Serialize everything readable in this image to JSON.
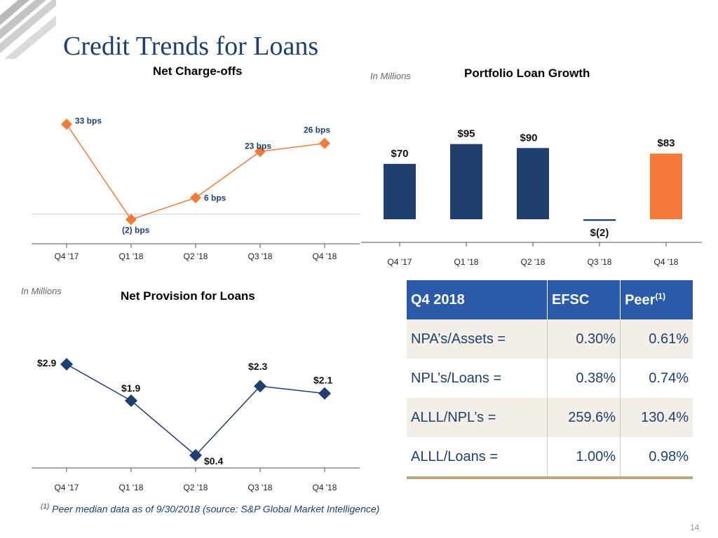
{
  "page": {
    "title": "Credit Trends for Loans",
    "page_number": "14",
    "footnote": {
      "marker": "(1)",
      "text": "Peer median data as of 9/30/2018 (source: S&P Global Market Intelligence)"
    }
  },
  "colors": {
    "navy": "#1f3f6f",
    "orange": "#f47a3a",
    "table_header": "#2b5aa8",
    "table_stripe": "#f3efe6",
    "table_rule": "#b9a67a"
  },
  "chart_data": [
    {
      "id": "net-charge-offs",
      "type": "line",
      "title": "Net Charge-offs",
      "units_label": "",
      "categories": [
        "Q4 '17",
        "Q1 '18",
        "Q2 '18",
        "Q3 '18",
        "Q4 '18"
      ],
      "values": [
        33,
        -2,
        6,
        23,
        26
      ],
      "labels": [
        "33 bps",
        "(2) bps",
        "6 bps",
        "23 bps",
        "26 bps"
      ],
      "ylim": [
        -5,
        38
      ],
      "color": "#f47a3a",
      "marker": "diamond"
    },
    {
      "id": "portfolio-loan-growth",
      "type": "bar",
      "title": "Portfolio Loan Growth",
      "units_label": "In Millions",
      "categories": [
        "Q4 '17",
        "Q1 '18",
        "Q2 '18",
        "Q3 '18",
        "Q4 '18"
      ],
      "values": [
        70,
        95,
        90,
        -2,
        83
      ],
      "labels": [
        "$70",
        "$95",
        "$90",
        "$(2)",
        "$83"
      ],
      "ylim": [
        -10,
        110
      ],
      "colors": [
        "#1f3f6f",
        "#1f3f6f",
        "#1f3f6f",
        "#1f3f6f",
        "#f47a3a"
      ]
    },
    {
      "id": "net-provision-for-loans",
      "type": "line",
      "title": "Net Provision for Loans",
      "units_label": "In Millions",
      "categories": [
        "Q4 '17",
        "Q1 '18",
        "Q2 '18",
        "Q3 '18",
        "Q4 '18"
      ],
      "values": [
        2.9,
        1.9,
        0.4,
        2.3,
        2.1
      ],
      "labels": [
        "$2.9",
        "$1.9",
        "$0.4",
        "$2.3",
        "$2.1"
      ],
      "ylim": [
        0,
        3.5
      ],
      "color": "#1f3f6f",
      "marker": "diamond"
    }
  ],
  "peer_table": {
    "headers": [
      "Q4 2018",
      "EFSC",
      "Peer"
    ],
    "peer_superscript": "(1)",
    "rows": [
      {
        "metric": "NPA’s/Assets =",
        "efsc": "0.30%",
        "peer": "0.61%"
      },
      {
        "metric": "NPL’s/Loans  =",
        "efsc": "0.38%",
        "peer": "0.74%"
      },
      {
        "metric": "ALLL/NPL’s    =",
        "efsc": "259.6%",
        "peer": "130.4%"
      },
      {
        "metric": "ALLL/Loans    =",
        "efsc": "1.00%",
        "peer": "0.98%"
      }
    ]
  }
}
